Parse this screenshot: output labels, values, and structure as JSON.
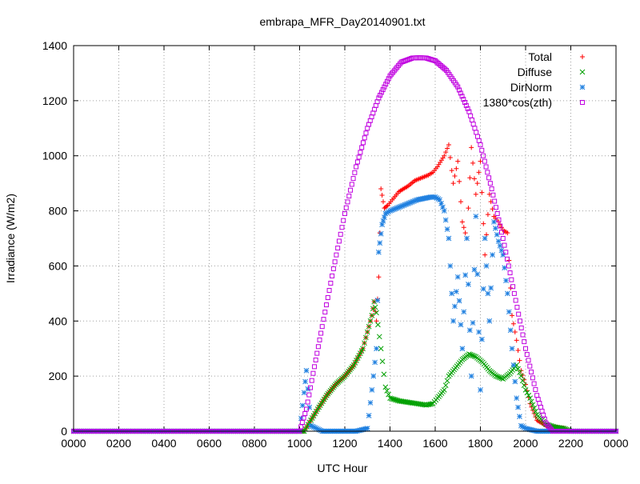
{
  "chart_data": {
    "type": "scatter",
    "title": "embrapa_MFR_Day20140901.txt",
    "xlabel": "UTC Hour",
    "ylabel": "Irradiance (W/m2)",
    "xlim": [
      0,
      24
    ],
    "ylim": [
      0,
      1400
    ],
    "x_ticks": [
      {
        "value": 0,
        "label": "0000"
      },
      {
        "value": 2,
        "label": "0200"
      },
      {
        "value": 4,
        "label": "0400"
      },
      {
        "value": 6,
        "label": "0600"
      },
      {
        "value": 8,
        "label": "0800"
      },
      {
        "value": 10,
        "label": "1000"
      },
      {
        "value": 12,
        "label": "1200"
      },
      {
        "value": 14,
        "label": "1400"
      },
      {
        "value": 16,
        "label": "1600"
      },
      {
        "value": 18,
        "label": "1800"
      },
      {
        "value": 20,
        "label": "2000"
      },
      {
        "value": 22,
        "label": "2200"
      },
      {
        "value": 24,
        "label": "0000"
      }
    ],
    "y_ticks": [
      {
        "value": 0,
        "label": "0"
      },
      {
        "value": 200,
        "label": "200"
      },
      {
        "value": 400,
        "label": "400"
      },
      {
        "value": 600,
        "label": "600"
      },
      {
        "value": 800,
        "label": "800"
      },
      {
        "value": 1000,
        "label": "1000"
      },
      {
        "value": 1200,
        "label": "1200"
      },
      {
        "value": 1400,
        "label": "1400"
      }
    ],
    "grid": true,
    "legend_position": "top-right",
    "series": [
      {
        "name": "Total",
        "color": "#ff0000",
        "marker": "plus",
        "points": [
          [
            0.0,
            0
          ],
          [
            6.0,
            0
          ],
          [
            10.2,
            0
          ],
          [
            10.5,
            40
          ],
          [
            10.8,
            80
          ],
          [
            11.2,
            130
          ],
          [
            11.6,
            170
          ],
          [
            12.0,
            200
          ],
          [
            12.4,
            240
          ],
          [
            12.8,
            300
          ],
          [
            13.0,
            360
          ],
          [
            13.2,
            420
          ],
          [
            13.3,
            470
          ],
          [
            13.4,
            400
          ],
          [
            13.5,
            560
          ],
          [
            13.6,
            880
          ],
          [
            13.75,
            810
          ],
          [
            13.9,
            820
          ],
          [
            14.1,
            840
          ],
          [
            14.4,
            870
          ],
          [
            14.8,
            890
          ],
          [
            15.1,
            910
          ],
          [
            15.4,
            920
          ],
          [
            15.7,
            930
          ],
          [
            15.9,
            940
          ],
          [
            16.1,
            960
          ],
          [
            16.4,
            1000
          ],
          [
            16.6,
            1040
          ],
          [
            16.8,
            900
          ],
          [
            17.0,
            980
          ],
          [
            17.2,
            760
          ],
          [
            17.4,
            700
          ],
          [
            17.6,
            1030
          ],
          [
            17.8,
            860
          ],
          [
            18.0,
            980
          ],
          [
            18.2,
            640
          ],
          [
            18.4,
            860
          ],
          [
            18.6,
            780
          ],
          [
            18.8,
            760
          ],
          [
            19.0,
            730
          ],
          [
            19.2,
            720
          ],
          [
            19.4,
            420
          ],
          [
            19.6,
            330
          ],
          [
            19.8,
            220
          ],
          [
            20.0,
            170
          ],
          [
            20.2,
            100
          ],
          [
            20.5,
            40
          ],
          [
            20.9,
            20
          ],
          [
            21.3,
            15
          ],
          [
            21.7,
            10
          ],
          [
            22.0,
            0
          ],
          [
            24.0,
            0
          ]
        ]
      },
      {
        "name": "Diffuse",
        "color": "#00a000",
        "marker": "cross",
        "points": [
          [
            0.0,
            0
          ],
          [
            6.0,
            0
          ],
          [
            10.2,
            0
          ],
          [
            10.5,
            40
          ],
          [
            10.8,
            80
          ],
          [
            11.2,
            130
          ],
          [
            11.6,
            170
          ],
          [
            12.0,
            200
          ],
          [
            12.4,
            240
          ],
          [
            12.8,
            300
          ],
          [
            13.0,
            360
          ],
          [
            13.2,
            420
          ],
          [
            13.3,
            470
          ],
          [
            13.4,
            430
          ],
          [
            13.6,
            300
          ],
          [
            13.8,
            160
          ],
          [
            14.0,
            120
          ],
          [
            14.4,
            110
          ],
          [
            14.8,
            105
          ],
          [
            15.2,
            100
          ],
          [
            15.6,
            95
          ],
          [
            15.9,
            100
          ],
          [
            16.1,
            120
          ],
          [
            16.4,
            150
          ],
          [
            16.6,
            200
          ],
          [
            16.9,
            230
          ],
          [
            17.2,
            260
          ],
          [
            17.5,
            280
          ],
          [
            17.8,
            270
          ],
          [
            18.1,
            250
          ],
          [
            18.4,
            220
          ],
          [
            18.7,
            200
          ],
          [
            19.0,
            190
          ],
          [
            19.3,
            210
          ],
          [
            19.6,
            240
          ],
          [
            19.8,
            200
          ],
          [
            20.0,
            150
          ],
          [
            20.2,
            120
          ],
          [
            20.5,
            60
          ],
          [
            20.9,
            25
          ],
          [
            21.3,
            15
          ],
          [
            21.7,
            10
          ],
          [
            22.0,
            0
          ],
          [
            24.0,
            0
          ]
        ]
      },
      {
        "name": "DirNorm",
        "color": "#2080e0",
        "marker": "star",
        "points": [
          [
            0.0,
            0
          ],
          [
            6.0,
            0
          ],
          [
            10.0,
            0
          ],
          [
            10.2,
            140
          ],
          [
            10.3,
            220
          ],
          [
            10.5,
            20
          ],
          [
            11.0,
            0
          ],
          [
            12.5,
            0
          ],
          [
            13.0,
            10
          ],
          [
            13.2,
            150
          ],
          [
            13.4,
            300
          ],
          [
            13.5,
            650
          ],
          [
            13.65,
            750
          ],
          [
            13.8,
            790
          ],
          [
            14.0,
            800
          ],
          [
            14.3,
            810
          ],
          [
            14.6,
            820
          ],
          [
            14.9,
            830
          ],
          [
            15.2,
            840
          ],
          [
            15.5,
            845
          ],
          [
            15.8,
            850
          ],
          [
            16.0,
            850
          ],
          [
            16.2,
            840
          ],
          [
            16.4,
            800
          ],
          [
            16.6,
            700
          ],
          [
            16.8,
            400
          ],
          [
            17.0,
            560
          ],
          [
            17.2,
            300
          ],
          [
            17.4,
            700
          ],
          [
            17.6,
            200
          ],
          [
            17.8,
            780
          ],
          [
            18.0,
            150
          ],
          [
            18.2,
            700
          ],
          [
            18.4,
            400
          ],
          [
            18.6,
            760
          ],
          [
            18.8,
            690
          ],
          [
            19.0,
            640
          ],
          [
            19.2,
            500
          ],
          [
            19.4,
            300
          ],
          [
            19.6,
            120
          ],
          [
            19.8,
            20
          ],
          [
            20.0,
            10
          ],
          [
            20.5,
            0
          ],
          [
            22.0,
            0
          ],
          [
            24.0,
            0
          ]
        ]
      },
      {
        "name": "1380*cos(zth)",
        "color": "#c000e0",
        "marker": "square",
        "points": [
          [
            0.0,
            0
          ],
          [
            10.0,
            0
          ],
          [
            10.3,
            80
          ],
          [
            10.6,
            210
          ],
          [
            11.0,
            380
          ],
          [
            11.5,
            590
          ],
          [
            12.0,
            790
          ],
          [
            12.5,
            960
          ],
          [
            13.0,
            1100
          ],
          [
            13.5,
            1210
          ],
          [
            14.0,
            1290
          ],
          [
            14.5,
            1340
          ],
          [
            15.0,
            1355
          ],
          [
            15.3,
            1356
          ],
          [
            15.6,
            1355
          ],
          [
            16.0,
            1345
          ],
          [
            16.5,
            1310
          ],
          [
            17.0,
            1250
          ],
          [
            17.5,
            1160
          ],
          [
            18.0,
            1040
          ],
          [
            18.5,
            880
          ],
          [
            19.0,
            700
          ],
          [
            19.5,
            500
          ],
          [
            20.0,
            300
          ],
          [
            20.5,
            130
          ],
          [
            20.9,
            30
          ],
          [
            21.2,
            0
          ],
          [
            24.0,
            0
          ]
        ]
      }
    ]
  }
}
